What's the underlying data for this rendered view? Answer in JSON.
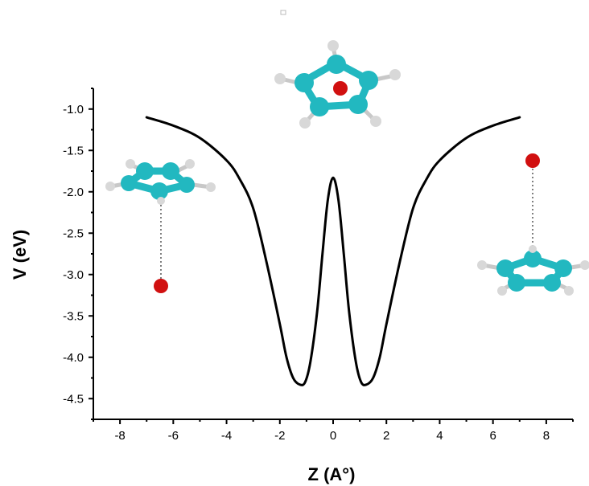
{
  "chart_data": {
    "type": "line",
    "title": "",
    "xlabel": "Z (A°)",
    "ylabel": "V (eV)",
    "xlim": [
      -9,
      9
    ],
    "ylim": [
      -4.75,
      -0.75
    ],
    "x_ticks": [
      -8,
      -6,
      -4,
      -2,
      0,
      2,
      4,
      6,
      8
    ],
    "y_ticks": [
      -1.0,
      -1.5,
      -2.0,
      -2.5,
      -3.0,
      -3.5,
      -4.0,
      -4.5
    ],
    "y_tick_labels": [
      "-1.0",
      "-1.5",
      "-2.0",
      "-2.5",
      "-3.0",
      "-3.5",
      "-4.0",
      "-4.5"
    ],
    "legend": "none",
    "grid": false,
    "series": [
      {
        "color": "#000000",
        "x": [
          -7.0,
          -6.0,
          -5.0,
          -4.0,
          -3.5,
          -3.0,
          -2.5,
          -2.0,
          -1.75,
          -1.5,
          -1.25,
          -1.05,
          -0.85,
          -0.6,
          -0.4,
          -0.2,
          0.0,
          0.2,
          0.4,
          0.6,
          0.85,
          1.05,
          1.25,
          1.5,
          1.75,
          2.0,
          2.5,
          3.0,
          3.5,
          4.0,
          5.0,
          6.0,
          7.0
        ],
        "y": [
          -1.1,
          -1.2,
          -1.35,
          -1.62,
          -1.85,
          -2.2,
          -2.85,
          -3.6,
          -4.0,
          -4.25,
          -4.33,
          -4.3,
          -4.05,
          -3.45,
          -2.75,
          -2.1,
          -1.83,
          -2.1,
          -2.75,
          -3.45,
          -4.05,
          -4.3,
          -4.33,
          -4.25,
          -4.0,
          -3.6,
          -2.85,
          -2.2,
          -1.85,
          -1.62,
          -1.35,
          -1.2,
          -1.1
        ]
      }
    ]
  },
  "illustrations": {
    "atom_color": "#d11010",
    "carbon_color": "#22b8c0",
    "hydrogen_color": "#d8d8d8",
    "left_molecule": "cyclopentadienyl-ring-with-atom-below",
    "center_molecule": "cyclopentadienyl-ring-with-atom-in-plane",
    "right_molecule": "cyclopentadienyl-ring-with-atom-above"
  }
}
